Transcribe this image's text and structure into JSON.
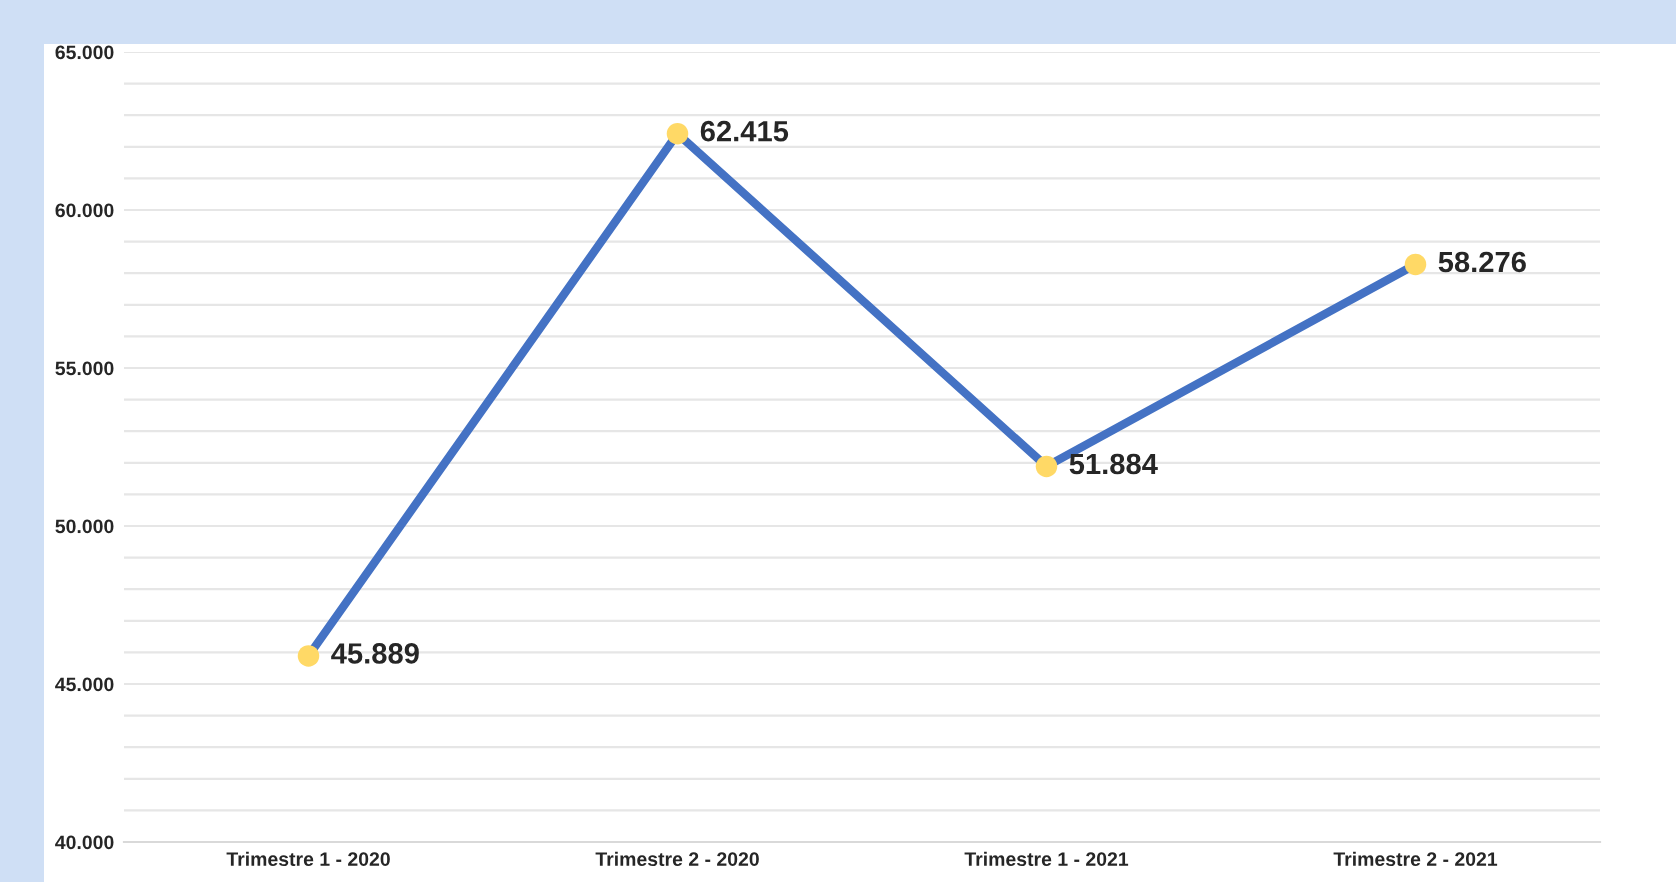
{
  "chart_data": {
    "type": "line",
    "categories": [
      "Trimestre 1 - 2020",
      "Trimestre 2 - 2020",
      "Trimestre 1 - 2021",
      "Trimestre 2 - 2021"
    ],
    "series": [
      {
        "color": "#4472c4",
        "colors": [
          "#ffd966",
          "#ffd966",
          "#ffd966",
          "#ffd966"
        ],
        "values": [
          45889,
          62415,
          51884,
          58276
        ],
        "value_labels": [
          "45.889",
          "62.415",
          "51.884",
          "58.276"
        ]
      }
    ],
    "ylim": [
      40000,
      65000
    ],
    "yticks": [
      {
        "value": 40000,
        "label": "40.000"
      },
      {
        "value": 41000,
        "label": null
      },
      {
        "value": 42000,
        "label": null
      },
      {
        "value": 43000,
        "label": null
      },
      {
        "value": 44000,
        "label": null
      },
      {
        "value": 45000,
        "label": "45.000"
      },
      {
        "value": 46000,
        "label": null
      },
      {
        "value": 47000,
        "label": null
      },
      {
        "value": 48000,
        "label": null
      },
      {
        "value": 49000,
        "label": null
      },
      {
        "value": 50000,
        "label": "50.000"
      },
      {
        "value": 51000,
        "label": null
      },
      {
        "value": 52000,
        "label": null
      },
      {
        "value": 53000,
        "label": null
      },
      {
        "value": 54000,
        "label": null
      },
      {
        "value": 55000,
        "label": "55.000"
      },
      {
        "value": 56000,
        "label": null
      },
      {
        "value": 57000,
        "label": null
      },
      {
        "value": 58000,
        "label": null
      },
      {
        "value": 59000,
        "label": null
      },
      {
        "value": 60000,
        "label": "60.000"
      },
      {
        "value": 61000,
        "label": null
      },
      {
        "value": 62000,
        "label": null
      },
      {
        "value": 63000,
        "label": null
      },
      {
        "value": 64000,
        "label": null
      },
      {
        "value": 65000,
        "label": "65.000"
      }
    ],
    "grid": "y",
    "marker": "circle",
    "line_style": "solid",
    "legend": false
  }
}
